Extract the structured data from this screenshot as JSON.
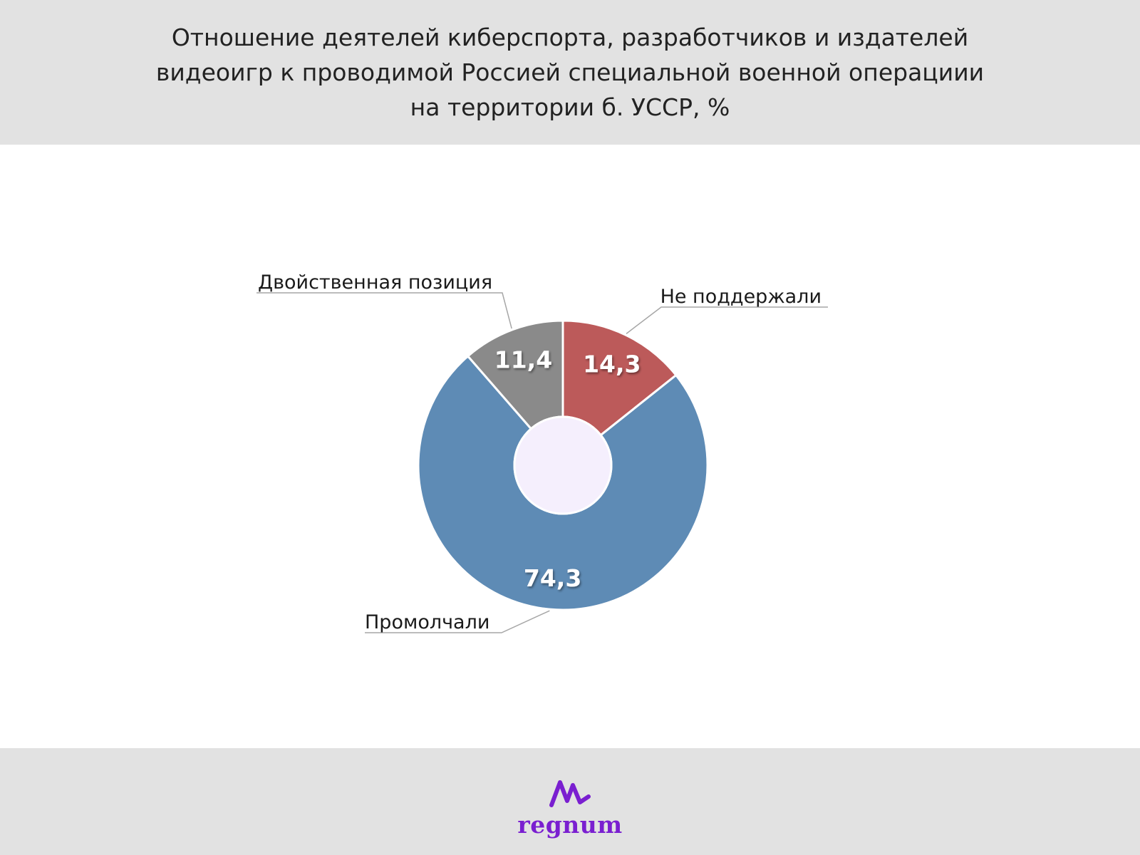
{
  "header": {
    "title_lines": [
      "Отношение деятелей киберспорта, разработчиков и издателей",
      "видеоигр к проводимой Россией специальной военной операциии",
      "на территории б. УССР, %"
    ]
  },
  "chart_data": {
    "type": "pie",
    "variant": "donut",
    "title": "Отношение деятелей киберспорта, разработчиков и издателей видеоигр к проводимой Россией специальной военной операциии на территории б. УССР, %",
    "slices": [
      {
        "label": "Не поддержали",
        "value": 14.3,
        "value_label": "14,3",
        "color": "#bc5a5a"
      },
      {
        "label": "Промолчали",
        "value": 74.3,
        "value_label": "74,3",
        "color": "#5e8bb5"
      },
      {
        "label": "Двойственная позиция",
        "value": 11.4,
        "value_label": "11,4",
        "color": "#8a8a8a"
      }
    ],
    "hole_color": "#f5effd",
    "start_angle_deg": 0,
    "direction": "clockwise"
  },
  "footer": {
    "logo_text": "regnum",
    "logo_icon": "regnum-mountain-icon",
    "brand_color": "#7a1fd0"
  }
}
